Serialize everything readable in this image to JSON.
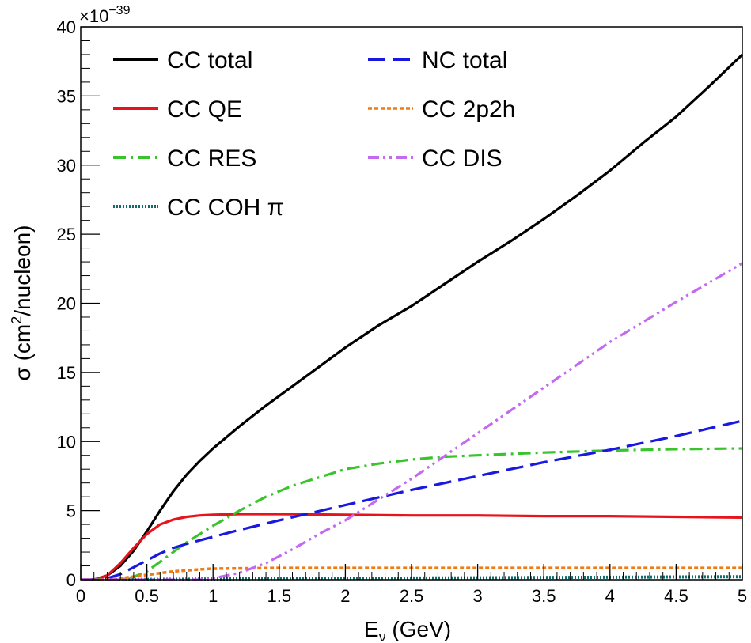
{
  "chart_data": {
    "type": "line",
    "title": "",
    "xlabel": {
      "main": "E",
      "sub": "ν",
      "rest": " (GeV)"
    },
    "ylabel": {
      "pre": "σ (cm",
      "sup": "2",
      "post": "/nucleon)"
    },
    "xlim": [
      0,
      5
    ],
    "ylim": [
      0,
      40
    ],
    "y_multiplier": {
      "base": "×10",
      "exp": "−39"
    },
    "x_ticks": [
      0,
      0.5,
      1,
      1.5,
      2,
      2.5,
      3,
      3.5,
      4,
      4.5,
      5
    ],
    "x_tick_labels": [
      "0",
      "0.5",
      "1",
      "1.5",
      "2",
      "2.5",
      "3",
      "3.5",
      "4",
      "4.5",
      "5"
    ],
    "y_ticks": [
      0,
      5,
      10,
      15,
      20,
      25,
      30,
      35,
      40
    ],
    "y_tick_labels": [
      "0",
      "5",
      "10",
      "15",
      "20",
      "25",
      "30",
      "35",
      "40"
    ],
    "grid": false,
    "legend_position": "top-left, two columns",
    "series": [
      {
        "name": "CC total",
        "color": "#000000",
        "dash": "solid",
        "x": [
          0,
          0.1,
          0.2,
          0.3,
          0.4,
          0.5,
          0.6,
          0.7,
          0.8,
          0.9,
          1.0,
          1.2,
          1.4,
          1.6,
          1.8,
          2.0,
          2.25,
          2.5,
          2.75,
          3.0,
          3.25,
          3.5,
          3.75,
          4.0,
          4.25,
          4.5,
          4.75,
          5.0
        ],
        "y": [
          0,
          0,
          0.3,
          1.0,
          2.1,
          3.5,
          5.0,
          6.4,
          7.6,
          8.6,
          9.5,
          11.1,
          12.6,
          14.0,
          15.4,
          16.8,
          18.4,
          19.8,
          21.4,
          23.0,
          24.5,
          26.1,
          27.8,
          29.6,
          31.6,
          33.5,
          35.7,
          38.0
        ]
      },
      {
        "name": "CC QE",
        "color": "#e8141c",
        "dash": "solid",
        "x": [
          0,
          0.1,
          0.2,
          0.3,
          0.4,
          0.5,
          0.6,
          0.7,
          0.8,
          0.9,
          1.0,
          1.2,
          1.5,
          2.0,
          2.5,
          3.0,
          3.5,
          4.0,
          4.5,
          5.0
        ],
        "y": [
          0,
          0,
          0.3,
          1.2,
          2.3,
          3.3,
          4.0,
          4.35,
          4.55,
          4.65,
          4.7,
          4.75,
          4.75,
          4.7,
          4.65,
          4.65,
          4.6,
          4.6,
          4.55,
          4.5
        ]
      },
      {
        "name": "CC RES",
        "color": "#39c42c",
        "dash": "dashdot",
        "x": [
          0,
          0.3,
          0.4,
          0.5,
          0.6,
          0.7,
          0.8,
          0.9,
          1.0,
          1.2,
          1.4,
          1.6,
          1.8,
          2.0,
          2.25,
          2.5,
          2.75,
          3.0,
          3.5,
          4.0,
          4.5,
          5.0
        ],
        "y": [
          0,
          0,
          0.2,
          0.6,
          1.3,
          2.0,
          2.7,
          3.3,
          3.9,
          5.0,
          6.0,
          6.8,
          7.4,
          8.0,
          8.4,
          8.7,
          8.9,
          9.0,
          9.2,
          9.35,
          9.45,
          9.5
        ]
      },
      {
        "name": "CC COH π",
        "color": "#0f6b6b",
        "dash": "dotted",
        "x": [
          0,
          0.5,
          1.0,
          1.5,
          2.0,
          2.5,
          3.0,
          3.5,
          4.0,
          4.5,
          5.0
        ],
        "y": [
          0,
          0.02,
          0.05,
          0.08,
          0.1,
          0.12,
          0.14,
          0.16,
          0.18,
          0.2,
          0.22
        ]
      },
      {
        "name": "NC total",
        "color": "#1818e0",
        "dash": "longdash",
        "x": [
          0,
          0.1,
          0.2,
          0.3,
          0.4,
          0.5,
          0.6,
          0.7,
          0.8,
          1.0,
          1.2,
          1.5,
          2.0,
          2.5,
          3.0,
          3.5,
          4.0,
          4.5,
          5.0
        ],
        "y": [
          0,
          0,
          0.1,
          0.4,
          0.9,
          1.4,
          1.9,
          2.3,
          2.6,
          3.1,
          3.6,
          4.3,
          5.4,
          6.5,
          7.5,
          8.5,
          9.4,
          10.4,
          11.5
        ]
      },
      {
        "name": "CC 2p2h",
        "color": "#f07b14",
        "dash": "shortdash",
        "x": [
          0,
          0.2,
          0.3,
          0.5,
          0.7,
          0.9,
          1.0,
          1.5,
          2.0,
          2.5,
          3.0,
          3.5,
          4.0,
          4.5,
          5.0
        ],
        "y": [
          0,
          0,
          0.1,
          0.35,
          0.6,
          0.75,
          0.8,
          0.85,
          0.85,
          0.85,
          0.85,
          0.85,
          0.85,
          0.85,
          0.85
        ]
      },
      {
        "name": "CC DIS",
        "color": "#c36af0",
        "dash": "dashdotdot",
        "x": [
          0,
          0.9,
          1.0,
          1.1,
          1.2,
          1.4,
          1.6,
          1.8,
          2.0,
          2.5,
          3.0,
          3.5,
          4.0,
          4.5,
          5.0
        ],
        "y": [
          0,
          0,
          0.1,
          0.3,
          0.5,
          1.2,
          2.2,
          3.3,
          4.3,
          7.3,
          10.6,
          13.9,
          17.2,
          20.1,
          22.9
        ]
      }
    ],
    "legend": [
      {
        "label": "CC total",
        "series": 0,
        "col": 0,
        "row": 0
      },
      {
        "label": "CC QE",
        "series": 1,
        "col": 0,
        "row": 1
      },
      {
        "label": "CC RES",
        "series": 2,
        "col": 0,
        "row": 2
      },
      {
        "label": "CC COH π",
        "series": 3,
        "col": 0,
        "row": 3
      },
      {
        "label": "NC total",
        "series": 4,
        "col": 1,
        "row": 0
      },
      {
        "label": "CC 2p2h",
        "series": 5,
        "col": 1,
        "row": 1
      },
      {
        "label": "CC DIS",
        "series": 6,
        "col": 1,
        "row": 2
      }
    ]
  }
}
